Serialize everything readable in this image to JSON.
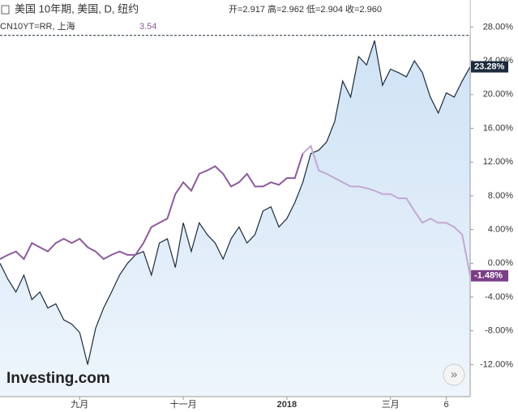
{
  "chart_data": {
    "type": "line",
    "header": {
      "title": "美国 10年期, 美国, D, 纽约",
      "ohlc": [
        "开=2.917",
        "高=2.962",
        "低=2.904",
        "收=2.960"
      ]
    },
    "categories": [
      null,
      null,
      null,
      null,
      null,
      null,
      null,
      null,
      null,
      null,
      "九月",
      null,
      null,
      null,
      null,
      null,
      null,
      null,
      null,
      null,
      null,
      null,
      null,
      "十一月",
      null,
      null,
      null,
      null,
      null,
      null,
      null,
      null,
      null,
      null,
      null,
      null,
      "2018",
      null,
      null,
      null,
      null,
      null,
      null,
      null,
      null,
      null,
      null,
      null,
      null,
      "三月",
      null,
      null,
      null,
      null,
      null,
      null,
      "6",
      null,
      null,
      null
    ],
    "series": [
      {
        "name": "美国 10年期",
        "color": "#1c2a3c",
        "fill": "#dbe9f7",
        "values": [
          0,
          -1.9,
          -3.4,
          -1.4,
          -4.3,
          -3.4,
          -5.3,
          -4.8,
          -6.7,
          -7.2,
          -8.2,
          -12,
          -7.7,
          -5.3,
          -3.4,
          -1.4,
          0,
          1.0,
          1.4,
          -1.4,
          2.4,
          2.9,
          -0.5,
          4.8,
          1.4,
          4.8,
          3.4,
          2.4,
          0.5,
          2.9,
          4.3,
          2.4,
          3.4,
          6.2,
          6.7,
          4.3,
          5.3,
          7.2,
          9.6,
          13,
          13.4,
          14.4,
          16.8,
          21.6,
          19.7,
          24.5,
          23.5,
          26.4,
          21.1,
          23.0,
          22.6,
          22.1,
          24,
          22.6,
          19.7,
          17.8,
          20.2,
          19.7,
          21.6,
          23.28
        ],
        "last_label": "23.28%"
      },
      {
        "name": "CN10YT=RR, 上海",
        "value_text": "3.54",
        "color": "#8e5a9e",
        "values": [
          0.5,
          1.0,
          1.4,
          0.5,
          2.4,
          1.9,
          1.4,
          2.4,
          2.9,
          2.4,
          2.9,
          1.9,
          1.4,
          0.5,
          1.0,
          1.4,
          1.0,
          1.0,
          2.4,
          4.3,
          4.8,
          5.3,
          8.2,
          9.6,
          8.6,
          10.6,
          11,
          11.5,
          10.6,
          9.1,
          9.6,
          10.6,
          9.1,
          9.1,
          9.6,
          9.3,
          10.1,
          10.1,
          13,
          13.9,
          11,
          10.6,
          10.1,
          9.6,
          9.1,
          9.1,
          8.9,
          8.6,
          8.2,
          8.2,
          7.7,
          7.7,
          6.2,
          4.8,
          5.3,
          4.8,
          4.8,
          4.3,
          3.4,
          -1.48
        ],
        "last_label": "-1.48%"
      }
    ],
    "split_index": 38,
    "split_color": "#c2a8d3",
    "reference_line": 27,
    "ylim": [
      -15.8,
      31.2
    ],
    "yticks": [
      {
        "value": 28,
        "label": "28.00%"
      },
      {
        "value": 24,
        "label": "24.00%"
      },
      {
        "value": 20,
        "label": "20.00%"
      },
      {
        "value": 16,
        "label": "16.00%"
      },
      {
        "value": 12,
        "label": "12.00%"
      },
      {
        "value": 8,
        "label": "8.00%"
      },
      {
        "value": 4,
        "label": "4.00%"
      },
      {
        "value": 0,
        "label": "0.00%"
      },
      {
        "value": -4,
        "label": "-4.00%"
      },
      {
        "value": -8,
        "label": "-8.00%"
      },
      {
        "value": -12,
        "label": "-12.00%"
      }
    ],
    "watermark": "Investing.com",
    "button": "»"
  }
}
